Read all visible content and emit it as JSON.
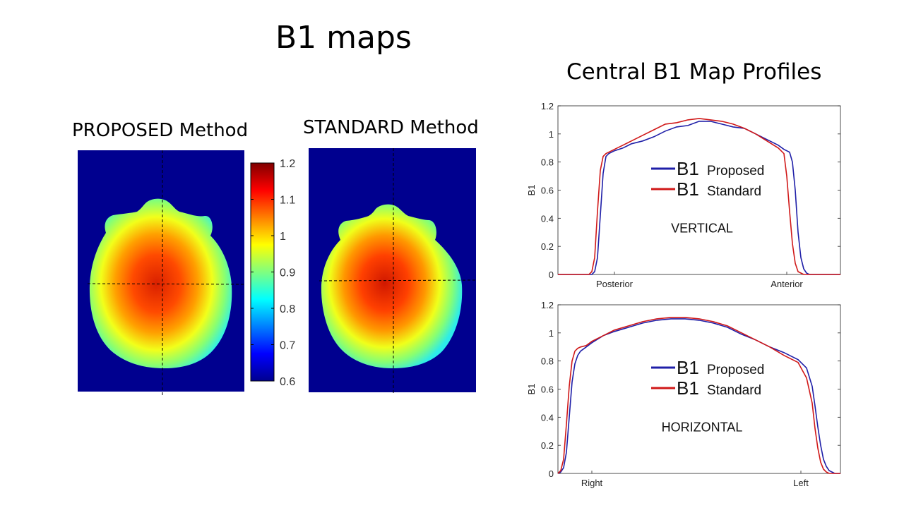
{
  "slide": {
    "title": "B1 maps",
    "profiles_title": "Central B1 Map Profiles"
  },
  "maps": {
    "proposed_title": "PROPOSED Method",
    "standard_title": "STANDARD Method",
    "colorbar": {
      "ticks": [
        "1.2",
        "1.1",
        "1",
        "0.9",
        "0.8",
        "0.7",
        "0.6"
      ],
      "min": 0.6,
      "max": 1.2,
      "colormap": "jet"
    },
    "colors": {
      "background": "#00008f",
      "crosshair": "#000000"
    }
  },
  "chart_data": [
    {
      "type": "line",
      "id": "vertical",
      "title": "",
      "annotation": "VERTICAL",
      "xlabel": "",
      "ylabel": "B1",
      "ylim": [
        0,
        1.2
      ],
      "yticks": [
        "0",
        "0.2",
        "0.4",
        "0.6",
        "0.8",
        "1",
        "1.2"
      ],
      "xlim": [
        0,
        100
      ],
      "xtick_labels": [
        {
          "x": 20,
          "label": "Posterior"
        },
        {
          "x": 81,
          "label": "Anterior"
        }
      ],
      "legend": {
        "symbol": "B1",
        "position": "center-top"
      },
      "series": [
        {
          "name": "Proposed",
          "color": "#1f1fa8",
          "x": [
            0,
            12,
            13,
            14,
            15,
            16,
            17,
            18,
            20,
            23,
            26,
            30,
            34,
            38,
            42,
            46,
            50,
            54,
            58,
            62,
            66,
            70,
            74,
            78,
            80,
            82,
            83,
            84,
            85,
            86,
            87,
            88,
            89,
            90,
            100
          ],
          "y": [
            0,
            0,
            0.02,
            0.12,
            0.42,
            0.72,
            0.84,
            0.86,
            0.88,
            0.9,
            0.93,
            0.95,
            0.98,
            1.02,
            1.05,
            1.06,
            1.09,
            1.09,
            1.07,
            1.05,
            1.04,
            1.0,
            0.96,
            0.92,
            0.89,
            0.87,
            0.8,
            0.6,
            0.3,
            0.12,
            0.04,
            0.01,
            0,
            0,
            0
          ]
        },
        {
          "name": "Standard",
          "color": "#d01818",
          "x": [
            0,
            11,
            12,
            13,
            14,
            15,
            16,
            17,
            18,
            20,
            23,
            26,
            30,
            34,
            38,
            42,
            46,
            50,
            54,
            58,
            62,
            66,
            70,
            74,
            78,
            80,
            81,
            82,
            83,
            84,
            85,
            86,
            87,
            88,
            100
          ],
          "y": [
            0,
            0,
            0.02,
            0.12,
            0.45,
            0.74,
            0.84,
            0.86,
            0.87,
            0.89,
            0.92,
            0.95,
            0.99,
            1.03,
            1.07,
            1.08,
            1.1,
            1.11,
            1.1,
            1.09,
            1.07,
            1.04,
            1.0,
            0.95,
            0.9,
            0.86,
            0.7,
            0.45,
            0.22,
            0.08,
            0.02,
            0.01,
            0,
            0,
            0
          ]
        }
      ]
    },
    {
      "type": "line",
      "id": "horizontal",
      "title": "",
      "annotation": "HORIZONTAL",
      "xlabel": "",
      "ylabel": "B1",
      "ylim": [
        0,
        1.2
      ],
      "yticks": [
        "0",
        "0.2",
        "0.4",
        "0.6",
        "0.8",
        "1",
        "1.2"
      ],
      "xlim": [
        0,
        100
      ],
      "xtick_labels": [
        {
          "x": 12,
          "label": "Right"
        },
        {
          "x": 86,
          "label": "Left"
        }
      ],
      "legend": {
        "symbol": "B1",
        "position": "center-top"
      },
      "series": [
        {
          "name": "Proposed",
          "color": "#1f1fa8",
          "x": [
            0,
            1,
            2,
            3,
            4,
            5,
            6,
            7,
            8,
            10,
            12,
            16,
            20,
            25,
            30,
            35,
            40,
            45,
            50,
            55,
            60,
            65,
            70,
            75,
            80,
            85,
            88,
            90,
            91,
            92,
            93,
            94,
            95,
            96,
            97,
            98,
            100
          ],
          "y": [
            0,
            0.01,
            0.04,
            0.15,
            0.4,
            0.65,
            0.78,
            0.84,
            0.87,
            0.9,
            0.93,
            0.98,
            1.01,
            1.04,
            1.07,
            1.09,
            1.1,
            1.1,
            1.09,
            1.07,
            1.04,
            0.99,
            0.95,
            0.9,
            0.86,
            0.81,
            0.75,
            0.62,
            0.48,
            0.33,
            0.2,
            0.1,
            0.05,
            0.02,
            0.01,
            0,
            0
          ]
        },
        {
          "name": "Standard",
          "color": "#d01818",
          "x": [
            0,
            1,
            2,
            3,
            4,
            5,
            6,
            7,
            8,
            10,
            12,
            16,
            20,
            25,
            30,
            35,
            40,
            45,
            50,
            55,
            60,
            65,
            70,
            75,
            80,
            85,
            88,
            90,
            91,
            92,
            93,
            94,
            95,
            96,
            97,
            98,
            100
          ],
          "y": [
            0,
            0.02,
            0.1,
            0.35,
            0.62,
            0.8,
            0.87,
            0.89,
            0.9,
            0.91,
            0.94,
            0.98,
            1.02,
            1.05,
            1.08,
            1.1,
            1.11,
            1.11,
            1.1,
            1.08,
            1.05,
            1.0,
            0.95,
            0.9,
            0.84,
            0.79,
            0.68,
            0.5,
            0.32,
            0.18,
            0.08,
            0.03,
            0.01,
            0,
            0,
            0,
            0
          ]
        }
      ]
    }
  ]
}
